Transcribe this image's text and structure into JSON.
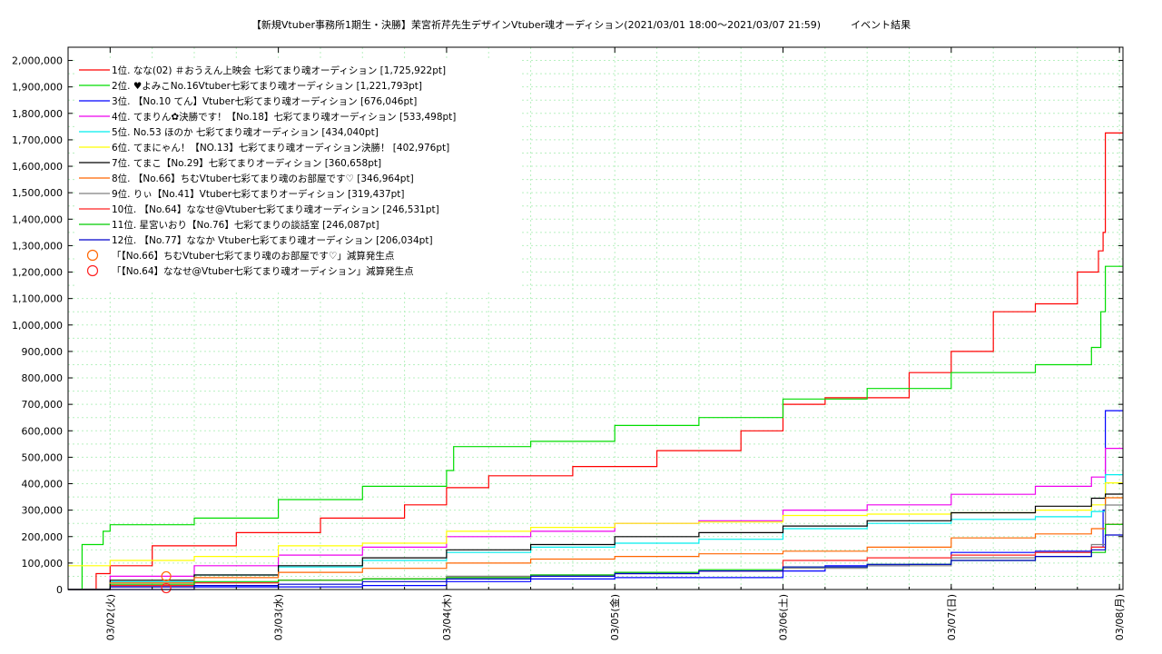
{
  "chart_data": {
    "type": "line",
    "title": "【新規Vtuber事務所1期生・決勝】茉宮祈芹先生デザインVtuber魂オーディション(2021/03/01 18:00～2021/03/07 21:59)　　　イベント結果",
    "xlabel": "",
    "ylabel": "",
    "x_range": [
      "2021-03-01 18:00",
      "2021-03-08 00:30"
    ],
    "x_ticks": [
      "03/02(火)",
      "03/03(水)",
      "03/04(木)",
      "03/05(金)",
      "03/06(土)",
      "03/07(日)",
      "03/08(月)"
    ],
    "ylim": [
      0,
      2050000
    ],
    "y_ticks": [
      "0",
      "100,000",
      "200,000",
      "300,000",
      "400,000",
      "500,000",
      "600,000",
      "700,000",
      "800,000",
      "900,000",
      "1,000,000",
      "1,100,000",
      "1,200,000",
      "1,300,000",
      "1,400,000",
      "1,500,000",
      "1,600,000",
      "1,700,000",
      "1,800,000",
      "1,900,000",
      "2,000,000"
    ],
    "grid": true,
    "legend_position": "top-left",
    "series": [
      {
        "name": "1位. なな(02) ＃おうえん上映会 七彩てまり魂オーディション [1,725,922pt]",
        "color": "#ff0000",
        "points": [
          [
            "03/01 18:00",
            0
          ],
          [
            "03/01 22:00",
            60000
          ],
          [
            "03/02 00:00",
            90000
          ],
          [
            "03/02 06:00",
            165000
          ],
          [
            "03/02 18:00",
            215000
          ],
          [
            "03/03 06:00",
            270000
          ],
          [
            "03/03 18:00",
            320000
          ],
          [
            "03/04 00:00",
            385000
          ],
          [
            "03/04 06:00",
            430000
          ],
          [
            "03/04 18:00",
            465000
          ],
          [
            "03/05 06:00",
            525000
          ],
          [
            "03/05 18:00",
            600000
          ],
          [
            "03/06 00:00",
            700000
          ],
          [
            "03/06 06:00",
            725000
          ],
          [
            "03/06 18:00",
            820000
          ],
          [
            "03/07 00:00",
            900000
          ],
          [
            "03/07 06:00",
            1050000
          ],
          [
            "03/07 12:00",
            1080000
          ],
          [
            "03/07 18:00",
            1200000
          ],
          [
            "03/07 21:00",
            1280000
          ],
          [
            "03/07 21:40",
            1350000
          ],
          [
            "03/07 21:59",
            1725922
          ]
        ]
      },
      {
        "name": "2位. ♥よみこNo.16Vtuber七彩てまり魂オーディション [1,221,793pt]",
        "color": "#00dd00",
        "points": [
          [
            "03/01 18:00",
            0
          ],
          [
            "03/01 20:00",
            170000
          ],
          [
            "03/01 23:00",
            220000
          ],
          [
            "03/02 00:00",
            245000
          ],
          [
            "03/02 12:00",
            270000
          ],
          [
            "03/03 00:00",
            340000
          ],
          [
            "03/03 12:00",
            390000
          ],
          [
            "03/04 00:00",
            450000
          ],
          [
            "03/04 01:00",
            540000
          ],
          [
            "03/04 12:00",
            560000
          ],
          [
            "03/05 00:00",
            620000
          ],
          [
            "03/05 12:00",
            650000
          ],
          [
            "03/06 00:00",
            720000
          ],
          [
            "03/06 12:00",
            760000
          ],
          [
            "03/07 00:00",
            820000
          ],
          [
            "03/07 12:00",
            850000
          ],
          [
            "03/07 20:00",
            915000
          ],
          [
            "03/07 21:20",
            1050000
          ],
          [
            "03/07 21:59",
            1221793
          ]
        ]
      },
      {
        "name": "3位. 【No.10 てん】Vtuber七彩てまり魂オーディション [676,046pt]",
        "color": "#0000ff",
        "points": [
          [
            "03/01 18:00",
            0
          ],
          [
            "03/02 12:00",
            10000
          ],
          [
            "03/03 12:00",
            15000
          ],
          [
            "03/04 00:00",
            30000
          ],
          [
            "03/04 12:00",
            40000
          ],
          [
            "03/05 00:00",
            45000
          ],
          [
            "03/05 12:00",
            45000
          ],
          [
            "03/06 00:00",
            70000
          ],
          [
            "03/06 06:00",
            90000
          ],
          [
            "03/06 18:00",
            95000
          ],
          [
            "03/07 00:00",
            140000
          ],
          [
            "03/07 12:00",
            145000
          ],
          [
            "03/07 20:00",
            160000
          ],
          [
            "03/07 21:40",
            300000
          ],
          [
            "03/07 21:59",
            676046
          ]
        ]
      },
      {
        "name": "4位. てまりん✿決勝です！【No.18】七彩てまり魂オーディション [533,498pt]",
        "color": "#ee00ee",
        "points": [
          [
            "03/01 18:00",
            0
          ],
          [
            "03/02 00:00",
            50000
          ],
          [
            "03/02 12:00",
            90000
          ],
          [
            "03/03 00:00",
            130000
          ],
          [
            "03/03 12:00",
            160000
          ],
          [
            "03/04 00:00",
            200000
          ],
          [
            "03/04 12:00",
            220000
          ],
          [
            "03/05 00:00",
            250000
          ],
          [
            "03/05 12:00",
            260000
          ],
          [
            "03/06 00:00",
            300000
          ],
          [
            "03/06 12:00",
            320000
          ],
          [
            "03/07 00:00",
            360000
          ],
          [
            "03/07 12:00",
            390000
          ],
          [
            "03/07 20:00",
            425000
          ],
          [
            "03/07 21:59",
            533498
          ]
        ]
      },
      {
        "name": "5位. No.53 ほのか 七彩てまり魂オーディション [434,040pt]",
        "color": "#00eeee",
        "points": [
          [
            "03/01 18:00",
            0
          ],
          [
            "03/02 00:00",
            30000
          ],
          [
            "03/02 12:00",
            55000
          ],
          [
            "03/03 00:00",
            85000
          ],
          [
            "03/03 12:00",
            110000
          ],
          [
            "03/04 00:00",
            140000
          ],
          [
            "03/04 12:00",
            160000
          ],
          [
            "03/05 00:00",
            175000
          ],
          [
            "03/05 12:00",
            190000
          ],
          [
            "03/06 00:00",
            230000
          ],
          [
            "03/06 12:00",
            250000
          ],
          [
            "03/07 00:00",
            265000
          ],
          [
            "03/07 12:00",
            275000
          ],
          [
            "03/07 20:00",
            295000
          ],
          [
            "03/07 21:59",
            434040
          ]
        ]
      },
      {
        "name": "6位. てまにゃん！【NO.13】七彩てまり魂オーディション決勝！ [402,976pt]",
        "color": "#ffff00",
        "points": [
          [
            "03/01 18:00",
            90000
          ],
          [
            "03/02 00:00",
            110000
          ],
          [
            "03/02 12:00",
            125000
          ],
          [
            "03/03 00:00",
            165000
          ],
          [
            "03/03 12:00",
            175000
          ],
          [
            "03/04 00:00",
            220000
          ],
          [
            "03/04 12:00",
            235000
          ],
          [
            "03/05 00:00",
            250000
          ],
          [
            "03/05 12:00",
            255000
          ],
          [
            "03/06 00:00",
            280000
          ],
          [
            "03/06 12:00",
            285000
          ],
          [
            "03/07 00:00",
            290000
          ],
          [
            "03/07 12:00",
            300000
          ],
          [
            "03/07 20:00",
            320000
          ],
          [
            "03/07 21:59",
            402976
          ]
        ]
      },
      {
        "name": "7位. てまこ【No.29】七彩てまりオーディション [360,658pt]",
        "color": "#000000",
        "points": [
          [
            "03/01 18:00",
            0
          ],
          [
            "03/02 00:00",
            35000
          ],
          [
            "03/02 12:00",
            55000
          ],
          [
            "03/03 00:00",
            90000
          ],
          [
            "03/03 12:00",
            120000
          ],
          [
            "03/04 00:00",
            150000
          ],
          [
            "03/04 12:00",
            170000
          ],
          [
            "03/05 00:00",
            200000
          ],
          [
            "03/05 12:00",
            215000
          ],
          [
            "03/06 00:00",
            240000
          ],
          [
            "03/06 12:00",
            260000
          ],
          [
            "03/07 00:00",
            290000
          ],
          [
            "03/07 12:00",
            315000
          ],
          [
            "03/07 20:00",
            345000
          ],
          [
            "03/07 21:59",
            360658
          ]
        ]
      },
      {
        "name": "8位. 【No.66】ちむVtuber七彩てまり魂のお部屋です♡ [346,964pt]",
        "color": "#ff6600",
        "points": [
          [
            "03/01 18:00",
            0
          ],
          [
            "03/02 00:00",
            25000
          ],
          [
            "03/02 12:00",
            45000
          ],
          [
            "03/03 00:00",
            65000
          ],
          [
            "03/03 12:00",
            80000
          ],
          [
            "03/04 00:00",
            100000
          ],
          [
            "03/04 12:00",
            115000
          ],
          [
            "03/05 00:00",
            125000
          ],
          [
            "03/05 12:00",
            135000
          ],
          [
            "03/06 00:00",
            145000
          ],
          [
            "03/06 12:00",
            160000
          ],
          [
            "03/07 00:00",
            195000
          ],
          [
            "03/07 12:00",
            210000
          ],
          [
            "03/07 20:00",
            230000
          ],
          [
            "03/07 21:59",
            346964
          ]
        ]
      },
      {
        "name": "9位. りぃ【No.41】Vtuber七彩てまりオーディション [319,437pt]",
        "color": "#808080",
        "points": [
          [
            "03/01 18:00",
            0
          ],
          [
            "03/02 00:00",
            15000
          ],
          [
            "03/02 12:00",
            25000
          ],
          [
            "03/03 00:00",
            35000
          ],
          [
            "03/03 12:00",
            40000
          ],
          [
            "03/04 00:00",
            50000
          ],
          [
            "03/04 12:00",
            55000
          ],
          [
            "03/05 00:00",
            65000
          ],
          [
            "03/05 12:00",
            70000
          ],
          [
            "03/06 00:00",
            80000
          ],
          [
            "03/06 12:00",
            90000
          ],
          [
            "03/07 00:00",
            120000
          ],
          [
            "03/07 12:00",
            140000
          ],
          [
            "03/07 20:00",
            170000
          ],
          [
            "03/07 21:59",
            319437
          ]
        ]
      },
      {
        "name": "10位. 【No.64】ななせ@Vtuber七彩てまり魂オーディション [246,531pt]",
        "color": "#ff2222",
        "points": [
          [
            "03/01 18:00",
            0
          ],
          [
            "03/02 00:00",
            15000
          ],
          [
            "03/02 12:00",
            25000
          ],
          [
            "03/03 00:00",
            35000
          ],
          [
            "03/03 12:00",
            40000
          ],
          [
            "03/04 00:00",
            45000
          ],
          [
            "03/04 12:00",
            50000
          ],
          [
            "03/05 00:00",
            60000
          ],
          [
            "03/05 12:00",
            70000
          ],
          [
            "03/06 00:00",
            110000
          ],
          [
            "03/06 12:00",
            120000
          ],
          [
            "03/07 00:00",
            130000
          ],
          [
            "03/07 12:00",
            140000
          ],
          [
            "03/07 20:00",
            160000
          ],
          [
            "03/07 21:59",
            246531
          ]
        ]
      },
      {
        "name": "11位. 星宮いおり【No.76】七彩てまりの談話室 [246,087pt]",
        "color": "#00cc00",
        "points": [
          [
            "03/01 18:00",
            0
          ],
          [
            "03/02 00:00",
            20000
          ],
          [
            "03/02 12:00",
            30000
          ],
          [
            "03/03 00:00",
            35000
          ],
          [
            "03/03 12:00",
            40000
          ],
          [
            "03/04 00:00",
            45000
          ],
          [
            "03/04 12:00",
            55000
          ],
          [
            "03/05 00:00",
            65000
          ],
          [
            "03/05 12:00",
            75000
          ],
          [
            "03/06 00:00",
            85000
          ],
          [
            "03/06 12:00",
            95000
          ],
          [
            "03/07 00:00",
            110000
          ],
          [
            "03/07 12:00",
            125000
          ],
          [
            "03/07 20:00",
            140000
          ],
          [
            "03/07 21:59",
            246087
          ]
        ]
      },
      {
        "name": "12位. 【No.77】ななか Vtuber七彩てまり魂オーディション [206,034pt]",
        "color": "#0000cc",
        "points": [
          [
            "03/01 18:00",
            0
          ],
          [
            "03/02 00:00",
            10000
          ],
          [
            "03/02 12:00",
            15000
          ],
          [
            "03/03 00:00",
            20000
          ],
          [
            "03/03 12:00",
            30000
          ],
          [
            "03/04 00:00",
            40000
          ],
          [
            "03/04 12:00",
            50000
          ],
          [
            "03/05 00:00",
            60000
          ],
          [
            "03/05 12:00",
            70000
          ],
          [
            "03/06 00:00",
            85000
          ],
          [
            "03/06 12:00",
            95000
          ],
          [
            "03/07 00:00",
            110000
          ],
          [
            "03/07 12:00",
            125000
          ],
          [
            "03/07 20:00",
            150000
          ],
          [
            "03/07 21:59",
            206034
          ]
        ]
      }
    ],
    "markers": [
      {
        "name": "「【No.66】ちむVtuber七彩てまり魂のお部屋です♡」減算発生点",
        "color": "#ff6600",
        "points": [
          [
            "03/02 08:00",
            50000
          ]
        ]
      },
      {
        "name": "「【No.64】ななせ@Vtuber七彩てまり魂オーディション」減算発生点",
        "color": "#ff2222",
        "points": [
          [
            "03/02 08:00",
            5000
          ]
        ]
      }
    ]
  }
}
